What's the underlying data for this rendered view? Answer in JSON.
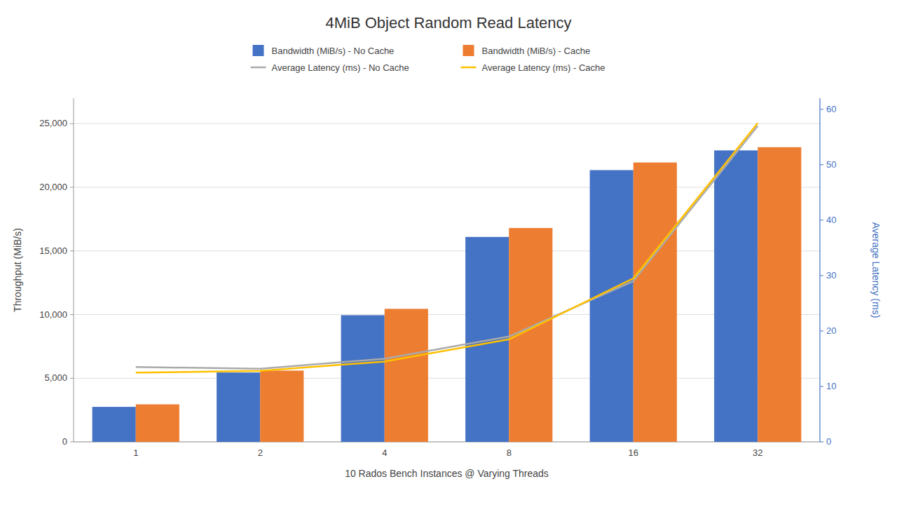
{
  "chart_data": {
    "type": "bar",
    "title": "4MiB Object Random Read Latency",
    "xlabel": "10 Rados Bench Instances @ Varying Threads",
    "ylabel": "Throughput (MiB/s)",
    "y2label": "Average Latency (ms)",
    "categories": [
      "1",
      "2",
      "4",
      "8",
      "16",
      "32"
    ],
    "series": [
      {
        "name": "Bandwidth (MiB/s) - No Cache",
        "type": "bar",
        "color": "#4472C4",
        "values": [
          2750,
          5450,
          9950,
          16100,
          21350,
          22900
        ]
      },
      {
        "name": "Bandwidth (MiB/s) - Cache",
        "type": "bar",
        "color": "#ED7D31",
        "values": [
          2950,
          5600,
          10450,
          16800,
          21950,
          23150
        ]
      },
      {
        "name": "Average Latency (ms) - No Cache",
        "type": "line",
        "axis": "y2",
        "color": "#AAAAAA",
        "values": [
          13.5,
          13.2,
          15.0,
          19.0,
          29.0,
          57.0
        ]
      },
      {
        "name": "Average Latency (ms) - Cache",
        "type": "line",
        "axis": "y2",
        "color": "#FFC000",
        "values": [
          12.5,
          12.8,
          14.5,
          18.5,
          29.5,
          57.5
        ]
      }
    ],
    "ylim": [
      0,
      27000
    ],
    "yticks": [
      0,
      {
        "value": 5000,
        "label": "5,000"
      },
      {
        "value": 10000,
        "label": "10,000"
      },
      {
        "value": 15000,
        "label": "15,000"
      },
      {
        "value": 20000,
        "label": "20,000"
      },
      {
        "value": 25000,
        "label": "25,000"
      }
    ],
    "y2lim": [
      0,
      62
    ],
    "y2ticks": [
      0,
      10,
      20,
      30,
      40,
      50,
      60
    ],
    "grid": true,
    "legend": "top"
  }
}
